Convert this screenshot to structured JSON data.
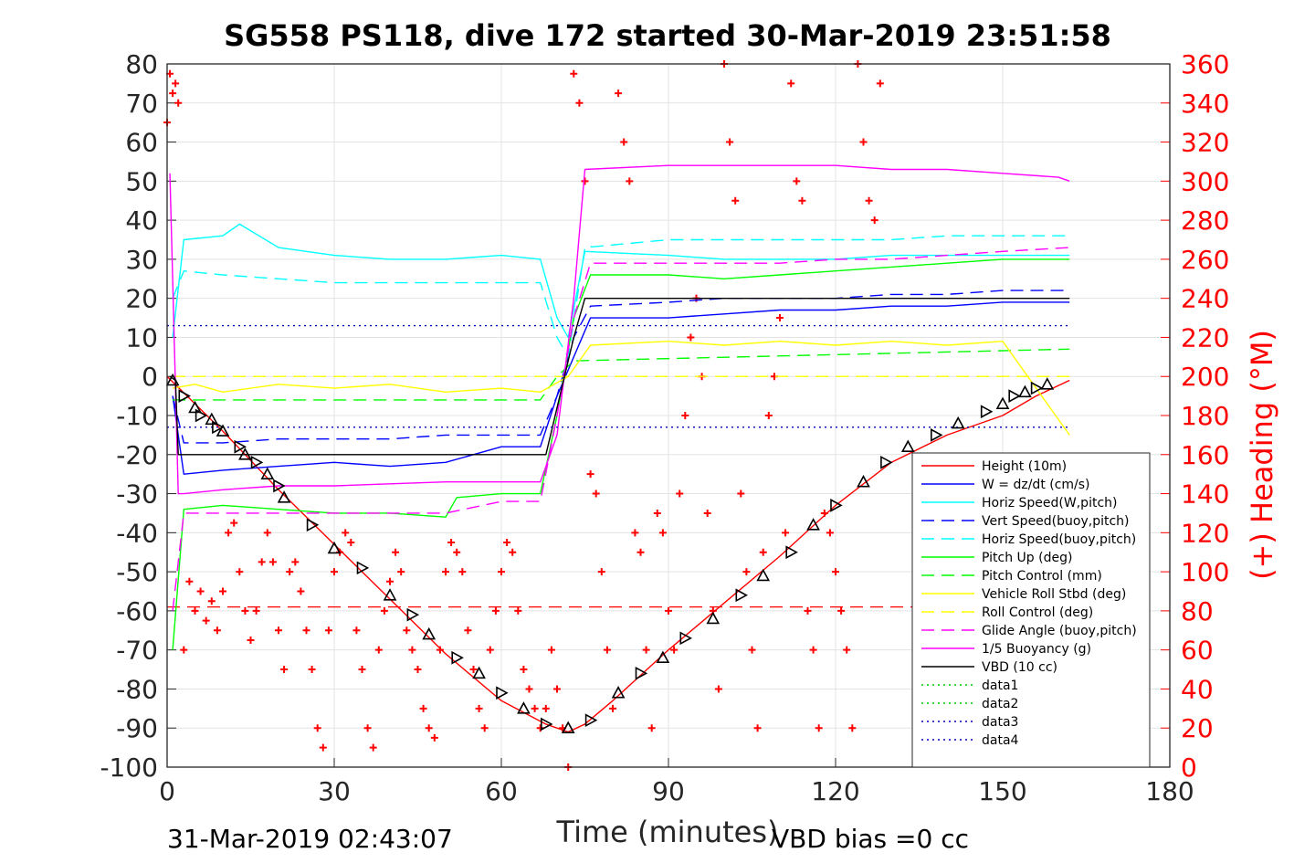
{
  "chart_data": {
    "type": "line",
    "title": "SG558 PS118, dive 172 started 30-Mar-2019 23:51:58",
    "xlabel": "Time (minutes)",
    "ylabel": "",
    "ylabel_right": "(+) Heading (°M)",
    "footer_left": "31-Mar-2019 02:43:07",
    "footer_right": "VBD bias =0 cc",
    "xlim": [
      0,
      180
    ],
    "ylim": [
      -100,
      80
    ],
    "ylim_right": [
      0,
      360
    ],
    "xticks": [
      "0",
      "30",
      "60",
      "90",
      "120",
      "150",
      "180"
    ],
    "yticks": [
      "80",
      "70",
      "60",
      "50",
      "40",
      "30",
      "20",
      "10",
      "0",
      "-10",
      "-20",
      "-30",
      "-40",
      "-50",
      "-60",
      "-70",
      "-80",
      "-90",
      "-100"
    ],
    "yticks_right": [
      "360",
      "340",
      "320",
      "300",
      "280",
      "260",
      "240",
      "220",
      "200",
      "180",
      "160",
      "140",
      "120",
      "100",
      "80",
      "60",
      "40",
      "20",
      "0"
    ],
    "grid": true,
    "legend_position": "lower-right",
    "series": [
      {
        "name": "Height (10m)",
        "color": "#ff0000",
        "style": "solid",
        "x": [
          0,
          5,
          10,
          20,
          30,
          40,
          50,
          60,
          68,
          72,
          75,
          80,
          90,
          100,
          110,
          120,
          130,
          140,
          150,
          156,
          162
        ],
        "y": [
          0,
          -7,
          -14,
          -29,
          -43,
          -57,
          -71,
          -83,
          -89,
          -91,
          -89,
          -83,
          -70,
          -58,
          -46,
          -33,
          -22,
          -15,
          -10,
          -5,
          -1
        ]
      },
      {
        "name": "W = dz/dt (cm/s)",
        "color": "#0000ff",
        "style": "solid",
        "x": [
          1,
          3,
          10,
          20,
          30,
          40,
          50,
          60,
          67,
          70,
          73,
          76,
          90,
          100,
          110,
          120,
          130,
          140,
          150,
          162
        ],
        "y": [
          -5,
          -25,
          -24,
          -23,
          -22,
          -23,
          -22,
          -18,
          -18,
          -5,
          5,
          15,
          15,
          16,
          17,
          17,
          18,
          18,
          19,
          19
        ]
      },
      {
        "name": "Horiz Speed(W,pitch)",
        "color": "#00ffff",
        "style": "solid",
        "x": [
          1,
          3,
          10,
          13,
          20,
          30,
          40,
          50,
          60,
          67,
          70,
          72,
          75,
          90,
          100,
          110,
          120,
          130,
          140,
          150,
          162
        ],
        "y": [
          10,
          35,
          36,
          39,
          33,
          31,
          30,
          30,
          31,
          30,
          15,
          10,
          32,
          31,
          30,
          30,
          30,
          31,
          31,
          31,
          31
        ]
      },
      {
        "name": "Vert Speed(buoy,pitch)",
        "color": "#0000ff",
        "style": "dashed",
        "x": [
          1,
          3,
          10,
          20,
          30,
          40,
          50,
          60,
          67,
          70,
          73,
          76,
          90,
          100,
          110,
          120,
          130,
          140,
          150,
          162
        ],
        "y": [
          -5,
          -17,
          -17,
          -16,
          -16,
          -16,
          -15,
          -15,
          -15,
          -5,
          10,
          18,
          19,
          20,
          20,
          20,
          21,
          21,
          22,
          22
        ]
      },
      {
        "name": "Horiz Speed(buoy,pitch)",
        "color": "#00ffff",
        "style": "dashed",
        "x": [
          1,
          3,
          10,
          20,
          30,
          40,
          50,
          60,
          67,
          70,
          72,
          75,
          90,
          100,
          110,
          120,
          130,
          140,
          150,
          162
        ],
        "y": [
          20,
          27,
          26,
          25,
          24,
          24,
          24,
          24,
          24,
          10,
          5,
          33,
          35,
          35,
          35,
          35,
          35,
          36,
          36,
          36
        ]
      },
      {
        "name": "Pitch Up (deg)",
        "color": "#00ff00",
        "style": "solid",
        "x": [
          1,
          3,
          10,
          20,
          30,
          40,
          50,
          52,
          60,
          67,
          70,
          73,
          76,
          90,
          100,
          110,
          120,
          130,
          140,
          150,
          162
        ],
        "y": [
          -70,
          -34,
          -33,
          -34,
          -35,
          -35,
          -36,
          -31,
          -30,
          -30,
          -10,
          15,
          26,
          26,
          25,
          26,
          27,
          28,
          29,
          30,
          30
        ]
      },
      {
        "name": "Pitch Control (mm)",
        "color": "#00ff00",
        "style": "dashed",
        "x": [
          1,
          3,
          67,
          70,
          73,
          162
        ],
        "y": [
          -6,
          -6,
          -6,
          0,
          4,
          7
        ]
      },
      {
        "name": "Vehicle Roll Stbd (deg)",
        "color": "#ffff00",
        "style": "solid",
        "x": [
          1,
          5,
          10,
          20,
          30,
          40,
          50,
          60,
          67,
          72,
          76,
          90,
          100,
          110,
          120,
          130,
          140,
          150,
          162
        ],
        "y": [
          -3,
          -2,
          -4,
          -2,
          -3,
          -2,
          -4,
          -3,
          -4,
          0,
          8,
          9,
          8,
          9,
          8,
          9,
          8,
          9,
          -15
        ]
      },
      {
        "name": "Roll Control (deg)",
        "color": "#ffff00",
        "style": "dashed",
        "x": [
          1,
          162
        ],
        "y": [
          0,
          0
        ]
      },
      {
        "name": "Glide Angle (buoy,pitch)",
        "color": "#ff00ff",
        "style": "dashed",
        "x": [
          1,
          3,
          10,
          20,
          30,
          40,
          50,
          60,
          67,
          70,
          73,
          76,
          90,
          100,
          110,
          120,
          130,
          140,
          150,
          162
        ],
        "y": [
          -60,
          -35,
          -35,
          -35,
          -35,
          -35,
          -35,
          -32,
          -32,
          -10,
          15,
          29,
          29,
          29,
          29,
          30,
          30,
          31,
          32,
          33
        ]
      },
      {
        "name": "1/5 Buoyancy (g)",
        "color": "#ff00ff",
        "style": "solid",
        "x": [
          0.5,
          2,
          3,
          10,
          20,
          30,
          40,
          50,
          60,
          67,
          70,
          73,
          75,
          90,
          100,
          110,
          120,
          130,
          140,
          150,
          160,
          162
        ],
        "y": [
          52,
          -30,
          -30,
          -29,
          -28,
          -28,
          -27.5,
          -27,
          -27,
          -27,
          -15,
          20,
          53,
          54,
          54,
          54,
          54,
          53,
          53,
          52,
          51,
          50
        ]
      },
      {
        "name": "VBD (10 cc)",
        "color": "#000000",
        "style": "solid",
        "x": [
          0.5,
          1.5,
          2,
          67,
          68,
          73,
          75,
          162
        ],
        "y": [
          0,
          -1,
          -20,
          -20,
          -20,
          10,
          20,
          20
        ]
      },
      {
        "name": "data1",
        "color": "#00cc00",
        "style": "dotted",
        "x": [],
        "y": []
      },
      {
        "name": "data2",
        "color": "#00cc00",
        "style": "dotted",
        "x": [],
        "y": []
      },
      {
        "name": "data3",
        "color": "#0000bb",
        "style": "dotted",
        "x": [
          0,
          162
        ],
        "y": [
          13,
          13
        ]
      },
      {
        "name": "data4",
        "color": "#0000bb",
        "style": "dotted",
        "x": [
          0,
          162
        ],
        "y": [
          -13,
          -13
        ]
      }
    ],
    "extra_lines": [
      {
        "color": "#ff0000",
        "style": "dashed",
        "x": [
          0,
          162
        ],
        "y": [
          -59,
          -59
        ]
      }
    ],
    "depth_markers": {
      "color": "#000000",
      "x": [
        1,
        3,
        5,
        6,
        8,
        9,
        10,
        13,
        14,
        16,
        18,
        20,
        21,
        26,
        30,
        35,
        40,
        44,
        47,
        52,
        56,
        60,
        64,
        68,
        72,
        76,
        81,
        85,
        89,
        93,
        98,
        103,
        107,
        112,
        116,
        120,
        125,
        129,
        133,
        138,
        142,
        147,
        150,
        152,
        154,
        156,
        158
      ],
      "y": [
        -1,
        -5,
        -8,
        -10,
        -11,
        -13,
        -14,
        -18,
        -20,
        -22,
        -25,
        -28,
        -31,
        -38,
        -44,
        -49,
        -56,
        -61,
        -66,
        -72,
        -76,
        -81,
        -85,
        -89,
        -90,
        -88,
        -81,
        -76,
        -72,
        -67,
        -62,
        -56,
        -51,
        -45,
        -38,
        -33,
        -27,
        -22,
        -18,
        -15,
        -12,
        -9,
        -7,
        -5,
        -4,
        -3,
        -2
      ]
    },
    "heading": {
      "name": "Heading",
      "axis": "right",
      "color": "#ff0000",
      "marker": "+",
      "x": [
        0,
        0.5,
        1,
        1.5,
        2,
        3,
        4,
        5,
        6,
        7,
        8,
        9,
        10,
        11,
        12,
        13,
        14,
        15,
        16,
        17,
        18,
        19,
        20,
        21,
        22,
        23,
        24,
        25,
        26,
        27,
        28,
        29,
        30,
        31,
        32,
        33,
        34,
        35,
        36,
        37,
        38,
        39,
        40,
        41,
        42,
        43,
        44,
        45,
        46,
        47,
        48,
        49,
        50,
        51,
        52,
        53,
        54,
        55,
        56,
        57,
        58,
        59,
        60,
        61,
        62,
        63,
        64,
        65,
        66,
        67,
        68,
        69,
        70,
        71,
        72,
        73,
        74,
        75,
        76,
        77,
        78,
        79,
        80,
        81,
        82,
        83,
        84,
        85,
        86,
        87,
        88,
        89,
        90,
        91,
        92,
        93,
        94,
        95,
        96,
        97,
        98,
        99,
        100,
        101,
        102,
        103,
        104,
        105,
        106,
        107,
        108,
        109,
        110,
        111,
        112,
        113,
        114,
        115,
        116,
        117,
        118,
        119,
        120,
        121,
        122,
        123,
        124,
        125,
        126,
        127,
        128
      ],
      "y": [
        330,
        355,
        345,
        350,
        340,
        60,
        95,
        80,
        90,
        75,
        85,
        70,
        90,
        120,
        125,
        100,
        80,
        65,
        80,
        105,
        120,
        105,
        70,
        50,
        100,
        105,
        90,
        70,
        50,
        20,
        10,
        70,
        100,
        110,
        120,
        115,
        70,
        50,
        20,
        10,
        60,
        80,
        95,
        110,
        100,
        70,
        60,
        50,
        30,
        20,
        15,
        60,
        100,
        115,
        110,
        100,
        70,
        50,
        30,
        20,
        60,
        80,
        100,
        115,
        110,
        80,
        50,
        40,
        30,
        20,
        30,
        60,
        40,
        20,
        0,
        355,
        340,
        300,
        150,
        140,
        100,
        60,
        30,
        345,
        320,
        300,
        120,
        110,
        60,
        20,
        130,
        120,
        80,
        60,
        140,
        180,
        220,
        240,
        200,
        130,
        80,
        40,
        360,
        320,
        290,
        140,
        100,
        60,
        20,
        110,
        180,
        200,
        230,
        120,
        350,
        300,
        290,
        80,
        60,
        20,
        130,
        120,
        100,
        80,
        60,
        20,
        360,
        320,
        290,
        280,
        350
      ]
    }
  }
}
